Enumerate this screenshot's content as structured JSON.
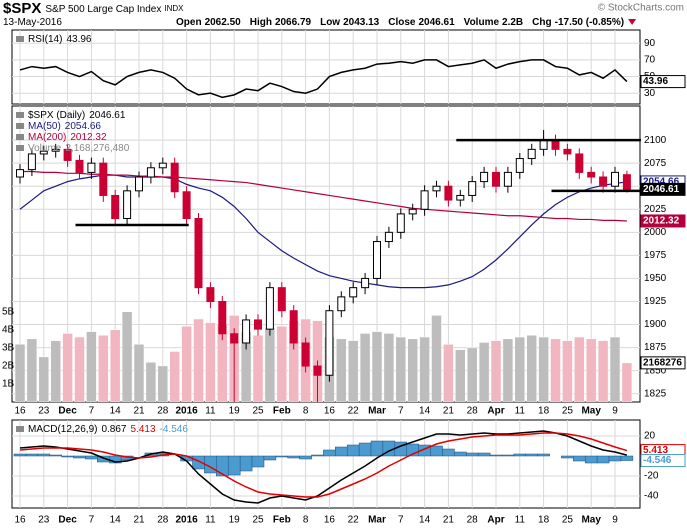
{
  "header": {
    "symbol": "$SPX",
    "name": "S&P 500 Large Cap Index",
    "exchange": "INDX",
    "date": "13-May-2016",
    "stats": [
      {
        "label": "Open",
        "value": "2062.50"
      },
      {
        "label": "High",
        "value": "2066.79"
      },
      {
        "label": "Low",
        "value": "2043.13"
      },
      {
        "label": "Close",
        "value": "2046.61"
      },
      {
        "label": "Volume",
        "value": "2.2B"
      },
      {
        "label": "Chg",
        "value": "-17.50 (-0.85%)"
      }
    ],
    "credit": "© StockCharts.com"
  },
  "chart_data": [
    {
      "type": "line",
      "ylim": [
        17,
        106
      ],
      "yticks": [
        30,
        50,
        70,
        90
      ],
      "grid": true,
      "series": [
        {
          "name": "RSI(14)",
          "color": "#000000",
          "values": [
            58,
            62,
            60,
            62,
            55,
            50,
            56,
            45,
            40,
            50,
            55,
            58,
            55,
            48,
            35,
            28,
            30,
            25,
            28,
            35,
            33,
            42,
            38,
            32,
            30,
            35,
            50,
            55,
            58,
            60,
            65,
            66,
            68,
            66,
            70,
            70,
            62,
            64,
            66,
            70,
            60,
            65,
            68,
            70,
            70,
            62,
            60,
            52,
            55,
            48,
            58,
            43.96
          ]
        }
      ]
    },
    {
      "type": "candlestick",
      "name": "$SPX (Daily)",
      "categories": [
        "16",
        null,
        "23",
        null,
        "Dec",
        null,
        "7",
        null,
        "14",
        null,
        "21",
        null,
        "28",
        null,
        "2016",
        null,
        "11",
        null,
        "19",
        null,
        "25",
        null,
        "Feb",
        null,
        "8",
        null,
        "16",
        null,
        "22",
        null,
        "Mar",
        null,
        "7",
        null,
        "14",
        null,
        "21",
        null,
        "28",
        null,
        "Apr",
        null,
        "11",
        null,
        "18",
        null,
        "25",
        null,
        "May",
        null,
        "9",
        null
      ],
      "open": [
        2060,
        2068,
        2085,
        2088,
        2090,
        2078,
        2065,
        2075,
        2040,
        2015,
        2045,
        2060,
        2070,
        2075,
        2044,
        2015,
        1940,
        1925,
        1890,
        1880,
        1905,
        1895,
        1940,
        1915,
        1880,
        1855,
        1845,
        1915,
        1930,
        1940,
        1950,
        1990,
        2000,
        2020,
        2025,
        2045,
        2050,
        2035,
        2040,
        2055,
        2065,
        2050,
        2065,
        2080,
        2090,
        2100,
        2090,
        2085,
        2065,
        2060,
        2050,
        2062.5
      ],
      "high": [
        2074,
        2091,
        2094,
        2096,
        2096,
        2084,
        2081,
        2081,
        2046,
        2051,
        2066,
        2076,
        2081,
        2081,
        2050,
        2021,
        1946,
        1931,
        1896,
        1911,
        1911,
        1946,
        1946,
        1921,
        1886,
        1861,
        1921,
        1936,
        1946,
        1956,
        1996,
        2006,
        2026,
        2031,
        2051,
        2056,
        2056,
        2046,
        2061,
        2071,
        2071,
        2071,
        2086,
        2096,
        2111,
        2106,
        2096,
        2091,
        2071,
        2066,
        2071,
        2066.79
      ],
      "low": [
        2053,
        2061,
        2078,
        2081,
        2071,
        2058,
        2058,
        2033,
        2008,
        2008,
        2038,
        2053,
        2063,
        2037,
        2008,
        1933,
        1918,
        1883,
        1812,
        1873,
        1888,
        1888,
        1908,
        1873,
        1848,
        1810,
        1838,
        1908,
        1923,
        1933,
        1943,
        1983,
        1993,
        2013,
        2018,
        2038,
        2028,
        2028,
        2033,
        2048,
        2043,
        2043,
        2058,
        2073,
        2083,
        2083,
        2078,
        2058,
        2053,
        2043,
        2043,
        2043.13
      ],
      "close": [
        2068,
        2085,
        2088,
        2090,
        2078,
        2065,
        2075,
        2040,
        2015,
        2045,
        2060,
        2070,
        2075,
        2044,
        2015,
        1940,
        1925,
        1890,
        1880,
        1905,
        1895,
        1940,
        1915,
        1880,
        1855,
        1845,
        1915,
        1930,
        1940,
        1950,
        1990,
        2000,
        2020,
        2025,
        2045,
        2050,
        2035,
        2040,
        2055,
        2065,
        2050,
        2065,
        2080,
        2090,
        2100,
        2090,
        2085,
        2065,
        2060,
        2050,
        2065,
        2046.61
      ],
      "color_up": "#000000",
      "color_down": "#cc0033",
      "ylim": [
        1816,
        2137
      ],
      "yticks": [
        1825,
        1850,
        1875,
        1900,
        1925,
        1950,
        1975,
        2000,
        2025,
        2050,
        2075,
        2100
      ],
      "grid": true,
      "series": [
        {
          "name": "MA(50)",
          "color": "#1a1a80",
          "box": "outline",
          "values": [
            2025,
            2035,
            2045,
            2050,
            2055,
            2058,
            2060,
            2062,
            2062,
            2060,
            2060,
            2060,
            2060,
            2058,
            2052,
            2048,
            2045,
            2038,
            2028,
            2015,
            2000,
            1990,
            1980,
            1972,
            1965,
            1958,
            1953,
            1950,
            1947,
            1945,
            1943,
            1941,
            1940,
            1940,
            1940,
            1941,
            1943,
            1947,
            1952,
            1960,
            1970,
            1982,
            1995,
            2008,
            2020,
            2030,
            2038,
            2044,
            2048,
            2051,
            2053,
            2054.66
          ]
        },
        {
          "name": "MA(200)",
          "color": "#b3003c",
          "box": "filled",
          "values": [
            2066,
            2066,
            2065,
            2065,
            2064,
            2064,
            2063,
            2063,
            2062,
            2062,
            2061,
            2061,
            2060,
            2060,
            2059,
            2058,
            2057,
            2056,
            2055,
            2054,
            2052,
            2050,
            2048,
            2046,
            2044,
            2042,
            2040,
            2038,
            2036,
            2034,
            2032,
            2030,
            2028,
            2026,
            2025,
            2024,
            2023,
            2022,
            2021,
            2020,
            2019,
            2018,
            2018,
            2017,
            2016,
            2015,
            2015,
            2014,
            2014,
            2013,
            2013,
            2012.32
          ]
        }
      ],
      "volume": {
        "name": "Volume",
        "legend_value": "2,168,276,480",
        "box_label": "2168276",
        "axis": "y2",
        "color_up": "#bdbdbd",
        "color_down": "#f2b6c0",
        "values": [
          3.2,
          3.5,
          2.5,
          3.4,
          3.8,
          3.6,
          3.9,
          3.7,
          4.0,
          5.0,
          3.2,
          2.2,
          2.0,
          2.8,
          4.2,
          4.6,
          4.4,
          4.3,
          4.8,
          3.9,
          3.7,
          4.1,
          4.2,
          4.5,
          4.6,
          4.5,
          3.6,
          3.5,
          3.4,
          3.8,
          3.9,
          3.8,
          3.6,
          3.5,
          3.6,
          4.8,
          3.2,
          2.9,
          3.0,
          3.3,
          3.4,
          3.5,
          3.6,
          3.7,
          3.6,
          3.5,
          3.4,
          3.6,
          3.5,
          3.4,
          3.6,
          2.168276
        ]
      },
      "y2lim": [
        0,
        16.4
      ],
      "y2ticks": [
        {
          "value": 1,
          "label": "1B"
        },
        {
          "value": 2,
          "label": "2B"
        },
        {
          "value": 3,
          "label": "3B"
        },
        {
          "value": 4,
          "label": "4B"
        },
        {
          "value": 5,
          "label": "5B"
        }
      ],
      "hlines": [
        {
          "value": 2100,
          "start": 37,
          "end": 51
        },
        {
          "value": 2008,
          "start": 5,
          "end": 13
        },
        {
          "value": 2045,
          "start": 45,
          "end": 51
        }
      ]
    },
    {
      "type": "line",
      "ylim": [
        -52,
        36
      ],
      "yticks": [
        -40,
        -20,
        20
      ],
      "grid": true,
      "series": [
        {
          "name": "MACD(12,26,9)",
          "color": "#000000",
          "values": [
            8,
            9,
            10,
            9,
            7,
            5,
            3,
            -2,
            -6,
            -5,
            -2,
            2,
            4,
            2,
            -5,
            -18,
            -28,
            -38,
            -44,
            -46,
            -47,
            -42,
            -40,
            -42,
            -44,
            -40,
            -32,
            -24,
            -17,
            -10,
            -2,
            5,
            10,
            14,
            18,
            22,
            22,
            21,
            22,
            23,
            22,
            22,
            23,
            24,
            25,
            23,
            20,
            15,
            10,
            6,
            4,
            0.867
          ]
        },
        {
          "color": "#e00000",
          "values": [
            6,
            7,
            8,
            8,
            8,
            7,
            6,
            4,
            1,
            -1,
            -2,
            -1,
            1,
            2,
            0,
            -5,
            -11,
            -18,
            -25,
            -31,
            -36,
            -38,
            -39,
            -40,
            -41,
            -41,
            -38,
            -33,
            -28,
            -23,
            -17,
            -10,
            -4,
            2,
            7,
            12,
            15,
            17,
            19,
            20,
            21,
            21,
            21,
            22,
            23,
            23,
            22,
            20,
            17,
            13,
            9,
            5.413
          ]
        },
        {
          "color": "#4c9bd0",
          "type": "bar",
          "values": [
            2,
            2,
            2,
            1,
            -1,
            -2,
            -3,
            -6,
            -7,
            -4,
            0,
            3,
            3,
            0,
            -5,
            -13,
            -17,
            -20,
            -19,
            -15,
            -11,
            -4,
            -1,
            -2,
            -3,
            1,
            6,
            9,
            11,
            13,
            15,
            15,
            14,
            12,
            11,
            10,
            7,
            4,
            3,
            3,
            1,
            1,
            2,
            2,
            2,
            0,
            -2,
            -5,
            -7,
            -7,
            -5,
            -4.546
          ]
        }
      ]
    }
  ]
}
